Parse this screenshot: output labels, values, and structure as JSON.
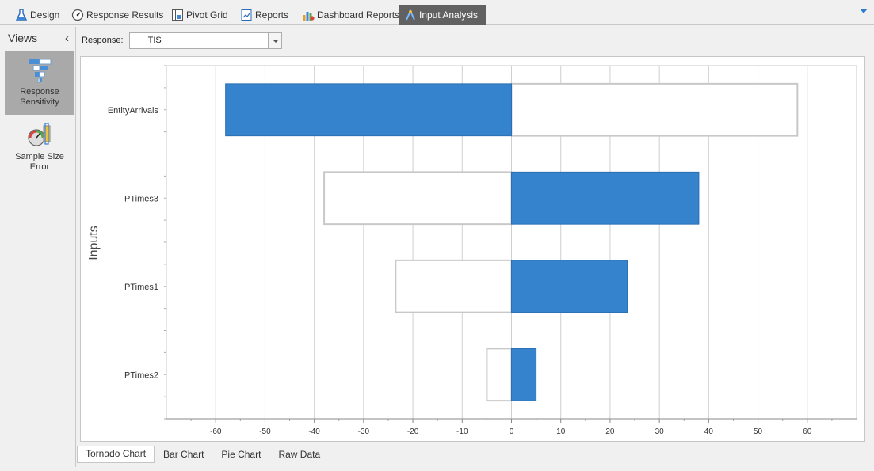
{
  "tabs": [
    {
      "label": "Design",
      "icon": "flask-icon"
    },
    {
      "label": "Response Results",
      "icon": "gauge-icon"
    },
    {
      "label": "Pivot Grid",
      "icon": "pivot-grid-icon"
    },
    {
      "label": "Reports",
      "icon": "report-icon"
    },
    {
      "label": "Dashboard Reports",
      "icon": "dashboard-icon"
    },
    {
      "label": "Input Analysis",
      "icon": "input-analysis-icon",
      "active": true
    }
  ],
  "views": {
    "title": "Views",
    "items": [
      {
        "label": "Response Sensitivity",
        "icon": "tornado-icon",
        "selected": true
      },
      {
        "label": "Sample Size Error",
        "icon": "sample-size-icon",
        "selected": false
      }
    ]
  },
  "response": {
    "label": "Response:",
    "value": "TIS"
  },
  "chart_data": {
    "type": "bar",
    "orientation": "horizontal",
    "style": "tornado",
    "ylabel": "Inputs",
    "xlabel": "",
    "xlim": [
      -70,
      70
    ],
    "xticks": [
      -60,
      -50,
      -40,
      -30,
      -20,
      -10,
      0,
      10,
      20,
      30,
      40,
      50,
      60
    ],
    "categories": [
      "EntityArrivals",
      "PTimes3",
      "PTimes1",
      "PTimes2"
    ],
    "values": [
      -58,
      38,
      23.5,
      5
    ],
    "colors": {
      "filled": "#3683cd",
      "outline": "#c8c8c8"
    },
    "grid": true
  },
  "bottom_tabs": [
    {
      "label": "Tornado Chart",
      "active": true
    },
    {
      "label": "Bar Chart",
      "active": false
    },
    {
      "label": "Pie Chart",
      "active": false
    },
    {
      "label": "Raw Data",
      "active": false
    }
  ]
}
